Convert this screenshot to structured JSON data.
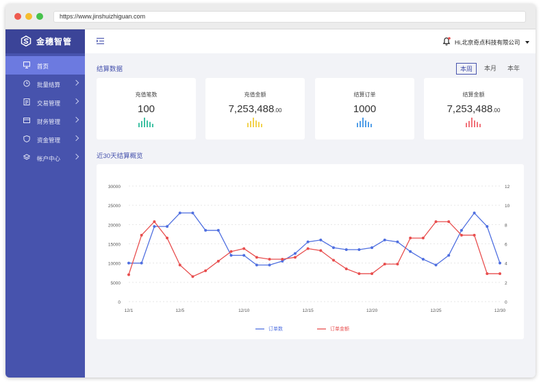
{
  "browser": {
    "url": "https://www.jinshuizhiguan.com",
    "colors": {
      "red": "#ee5a4f",
      "yellow": "#f5bd2f",
      "green": "#46c24c"
    }
  },
  "app": {
    "name": "金穗智管"
  },
  "sidebar": {
    "items": [
      {
        "label": "首页",
        "icon": "monitor-icon",
        "active": true
      },
      {
        "label": "批量结算",
        "icon": "settle-icon"
      },
      {
        "label": "交易管理",
        "icon": "document-icon"
      },
      {
        "label": "财务管理",
        "icon": "card-icon"
      },
      {
        "label": "资金管理",
        "icon": "shield-icon"
      },
      {
        "label": "帐户中心",
        "icon": "layers-icon"
      }
    ]
  },
  "header": {
    "greeting": "Hi,北京奇点科技有限公司",
    "menu_icon": "collapse-menu-icon",
    "bell_icon": "bell-icon"
  },
  "settlement": {
    "title": "结算数据",
    "tabs": [
      "本周",
      "本月",
      "本年"
    ],
    "active_tab": "本周",
    "cards": [
      {
        "title": "充值笔数",
        "value": "100",
        "decimal": "",
        "color": "#3fc1a3"
      },
      {
        "title": "充值金额",
        "value": "7,253,488",
        "decimal": ".00",
        "color": "#f2d24c"
      },
      {
        "title": "结算订单",
        "value": "1000",
        "decimal": "",
        "color": "#4f9de8"
      },
      {
        "title": "结算金额",
        "value": "7,253,488",
        "decimal": ".00",
        "color": "#f0727a"
      }
    ]
  },
  "overview": {
    "title": "近30天结算概览"
  },
  "chart_data": {
    "type": "line",
    "x": [
      "12/1",
      "12/2",
      "12/3",
      "12/4",
      "12/5",
      "12/6",
      "12/7",
      "12/8",
      "12/9",
      "12/10",
      "12/11",
      "12/12",
      "12/13",
      "12/14",
      "12/15",
      "12/16",
      "12/17",
      "12/18",
      "12/19",
      "12/20",
      "12/21",
      "12/22",
      "12/23",
      "12/24",
      "12/25",
      "12/26",
      "12/27",
      "12/28",
      "12/29",
      "12/30"
    ],
    "xticks": [
      "12/1",
      "12/5",
      "12/10",
      "12/15",
      "12/20",
      "12/25",
      "12/30"
    ],
    "y_left": {
      "ticks": [
        0,
        5000,
        10000,
        15000,
        20000,
        25000,
        30000
      ],
      "lim": [
        0,
        30000
      ]
    },
    "y_right": {
      "ticks": [
        0,
        2,
        4,
        6,
        8,
        10,
        12
      ],
      "lim": [
        0,
        12
      ]
    },
    "series": [
      {
        "name": "订单数",
        "axis": "left",
        "color": "#4f6fe0",
        "values": [
          10000,
          10000,
          19500,
          19500,
          23000,
          23000,
          18500,
          18500,
          12000,
          12000,
          9500,
          9500,
          10500,
          12500,
          15500,
          16000,
          14000,
          13500,
          13500,
          14000,
          16000,
          15500,
          13000,
          11000,
          9500,
          12000,
          18500,
          23000,
          19500,
          10000
        ]
      },
      {
        "name": "订单金额",
        "axis": "right",
        "color": "#e84e4e",
        "values": [
          2.8,
          6.9,
          8.3,
          6.6,
          3.8,
          2.6,
          3.2,
          4.2,
          5.2,
          5.5,
          4.6,
          4.4,
          4.4,
          4.6,
          5.5,
          5.3,
          4.3,
          3.4,
          2.9,
          2.9,
          3.9,
          3.9,
          6.6,
          6.6,
          8.3,
          8.3,
          6.9,
          6.9,
          2.9,
          2.9
        ]
      }
    ]
  }
}
